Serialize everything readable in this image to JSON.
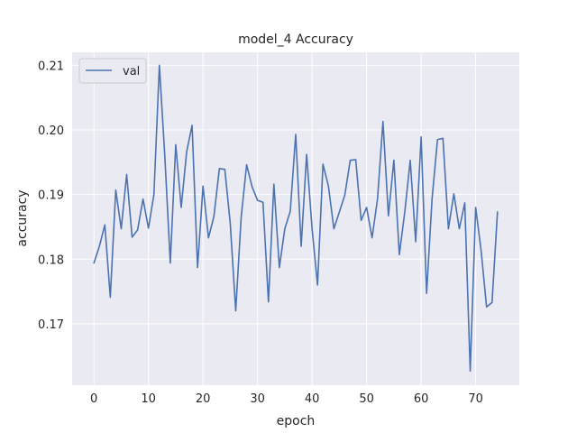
{
  "chart_data": {
    "type": "line",
    "title": "model_4 Accuracy",
    "xlabel": "epoch",
    "ylabel": "accuracy",
    "xlim": [
      -4,
      78
    ],
    "ylim": [
      0.1605,
      0.212
    ],
    "xticks": [
      0,
      10,
      20,
      30,
      40,
      50,
      60,
      70
    ],
    "yticks": [
      0.17,
      0.18,
      0.19,
      0.2,
      0.21
    ],
    "ytick_labels": [
      "0.17",
      "0.18",
      "0.19",
      "0.20",
      "0.21"
    ],
    "legend": {
      "position": "top-left"
    },
    "grid": true,
    "series": [
      {
        "name": "val",
        "color": "#4c72b0",
        "x": [
          0,
          1,
          2,
          3,
          4,
          5,
          6,
          7,
          8,
          9,
          10,
          11,
          12,
          13,
          14,
          15,
          16,
          17,
          18,
          19,
          20,
          21,
          22,
          23,
          24,
          25,
          26,
          27,
          28,
          29,
          30,
          31,
          32,
          33,
          34,
          35,
          36,
          37,
          38,
          39,
          40,
          41,
          42,
          43,
          44,
          45,
          46,
          47,
          48,
          49,
          50,
          51,
          52,
          53,
          54,
          55,
          56,
          57,
          58,
          59,
          60,
          61,
          62,
          63,
          64,
          65,
          66,
          67,
          68,
          69,
          70,
          71,
          72,
          73,
          74
        ],
        "values": [
          0.1794,
          0.182,
          0.1853,
          0.1741,
          0.1907,
          0.1847,
          0.1931,
          0.1834,
          0.1845,
          0.1893,
          0.1848,
          0.19,
          0.21,
          0.1959,
          0.1794,
          0.1977,
          0.188,
          0.1966,
          0.2007,
          0.1787,
          0.1913,
          0.1833,
          0.1866,
          0.194,
          0.1939,
          0.1855,
          0.172,
          0.1865,
          0.1946,
          0.1912,
          0.1891,
          0.1888,
          0.1734,
          0.1916,
          0.1787,
          0.1847,
          0.1874,
          0.1993,
          0.182,
          0.1962,
          0.1847,
          0.176,
          0.1947,
          0.1913,
          0.1847,
          0.1873,
          0.1899,
          0.1953,
          0.1954,
          0.186,
          0.188,
          0.1833,
          0.1893,
          0.2013,
          0.1867,
          0.1953,
          0.1807,
          0.1873,
          0.1953,
          0.1827,
          0.1989,
          0.1747,
          0.1893,
          0.1985,
          0.1987,
          0.1847,
          0.1901,
          0.1847,
          0.1887,
          0.1627,
          0.188,
          0.1813,
          0.1726,
          0.1733,
          0.1873
        ]
      }
    ]
  }
}
